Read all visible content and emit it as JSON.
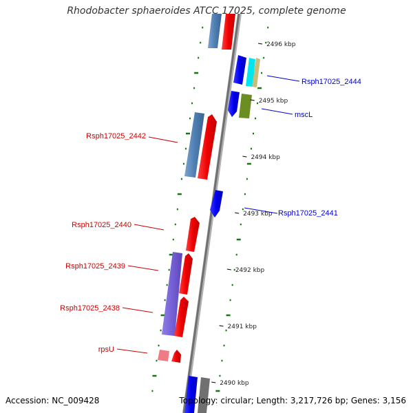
{
  "title": "Rhodobacter sphaeroides ATCC 17025, complete genome",
  "accession": "Accession: NC_009428",
  "stats": "Topology: circular; Length: 3,217,726 bp; Genes: 3,156",
  "ticks": [
    {
      "label": "2496 kbp",
      "kbp": 2496
    },
    {
      "label": "2495 kbp",
      "kbp": 2495
    },
    {
      "label": "2494 kbp",
      "kbp": 2494
    },
    {
      "label": "2493 kbp",
      "kbp": 2493
    },
    {
      "label": "2492 kbp",
      "kbp": 2492
    },
    {
      "label": "2491 kbp",
      "kbp": 2491
    },
    {
      "label": "2490 kbp",
      "kbp": 2490
    }
  ],
  "gene_labels": [
    {
      "name": "Rsph17025_2444",
      "color": "#0000cc"
    },
    {
      "name": "mscL",
      "color": "#0000cc"
    },
    {
      "name": "Rsph17025_2442",
      "color": "#cc0000"
    },
    {
      "name": "Rsph17025_2441",
      "color": "#0000cc"
    },
    {
      "name": "Rsph17025_2440",
      "color": "#cc0000"
    },
    {
      "name": "Rsph17025_2439",
      "color": "#cc0000"
    },
    {
      "name": "Rsph17025_2438",
      "color": "#cc0000"
    },
    {
      "name": "rpsU",
      "color": "#cc0000"
    }
  ],
  "colors": {
    "backbone": "#808080",
    "cds": "#ee0000",
    "gene_forward": "#0000ee",
    "gene_blue": "#4f7fb3",
    "trna_cyan": "#00e5ee",
    "tan": "#c8bd7a",
    "olive": "#6b8e23",
    "purple": "#7560d6",
    "pink": "#ef7c84",
    "gray_gene": "#707070",
    "gc_dash": "#117711"
  }
}
